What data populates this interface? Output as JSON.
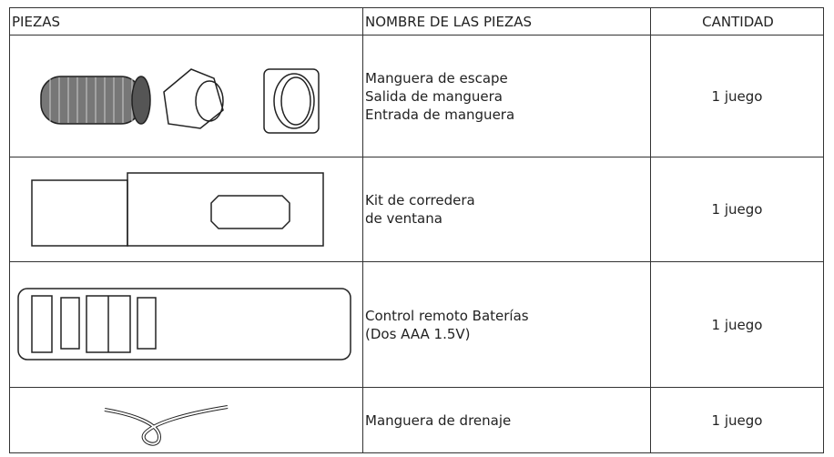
{
  "table": {
    "header": [
      "PIEZAS",
      "NOMBRE DE LAS PIEZAS",
      "CANTIDAD"
    ],
    "rows": [
      {
        "name": [
          "Manguera de escape",
          "Salida de manguera",
          "Entrada de manguera"
        ],
        "quantity": "1 juego"
      },
      {
        "name": [
          "Kit de corredera",
          "de ventana"
        ],
        "quantity": "1 juego"
      },
      {
        "name": [
          "Control remoto Baterías",
          "(Dos AAA 1.5V)"
        ],
        "quantity": "1 juego"
      },
      {
        "name": [
          "Manguera de drenaje"
        ],
        "quantity": "1 juego"
      }
    ]
  }
}
